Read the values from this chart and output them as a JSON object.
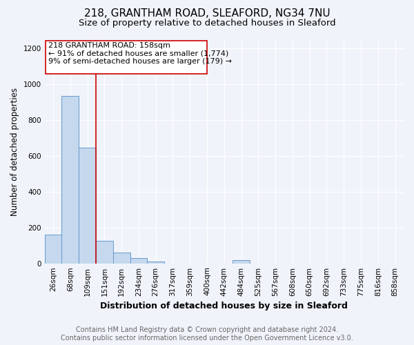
{
  "title1": "218, GRANTHAM ROAD, SLEAFORD, NG34 7NU",
  "title2": "Size of property relative to detached houses in Sleaford",
  "xlabel": "Distribution of detached houses by size in Sleaford",
  "ylabel": "Number of detached properties",
  "categories": [
    "26sqm",
    "68sqm",
    "109sqm",
    "151sqm",
    "192sqm",
    "234sqm",
    "276sqm",
    "317sqm",
    "359sqm",
    "400sqm",
    "442sqm",
    "484sqm",
    "525sqm",
    "567sqm",
    "608sqm",
    "650sqm",
    "692sqm",
    "733sqm",
    "775sqm",
    "816sqm",
    "858sqm"
  ],
  "values": [
    160,
    935,
    648,
    125,
    62,
    28,
    12,
    0,
    0,
    0,
    0,
    18,
    0,
    0,
    0,
    0,
    0,
    0,
    0,
    0,
    0
  ],
  "bar_color": "#c5d8ed",
  "bar_edge_color": "#6699cc",
  "property_line_x": 3,
  "property_line_color": "#cc0000",
  "annotation_text": "218 GRANTHAM ROAD: 158sqm\n← 91% of detached houses are smaller (1,774)\n9% of semi-detached houses are larger (179) →",
  "annotation_box_color": "#ffffff",
  "annotation_box_edge": "#cc0000",
  "ylim": [
    0,
    1250
  ],
  "yticks": [
    0,
    200,
    400,
    600,
    800,
    1000,
    1200
  ],
  "footer_line1": "Contains HM Land Registry data © Crown copyright and database right 2024.",
  "footer_line2": "Contains public sector information licensed under the Open Government Licence v3.0.",
  "bg_color": "#f0f4fa",
  "plot_bg_color": "#f0f4fa",
  "title1_fontsize": 11,
  "title2_fontsize": 9.5,
  "tick_fontsize": 7.5,
  "ylabel_fontsize": 8.5,
  "xlabel_fontsize": 9,
  "footer_fontsize": 7,
  "ann_fontsize": 8
}
